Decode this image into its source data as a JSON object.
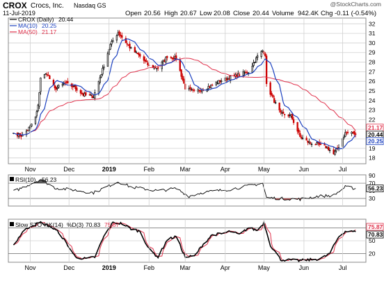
{
  "header": {
    "symbol": "CROX",
    "company": "Crocs, Inc.",
    "exchange": "Nasdaq GS",
    "date": "11-Jul-2019",
    "open_label": "Open",
    "open": "20.56",
    "high_label": "High",
    "high": "20.67",
    "low_label": "Low",
    "low": "20.08",
    "close_label": "Close",
    "close": "20.44",
    "volume_label": "Volume",
    "volume": "942.4K",
    "chg_label": "Chg",
    "chg": "-0.11 (-0.54%)",
    "watermark": "@StockCharts.com"
  },
  "colors": {
    "up": "#cc0000",
    "down": "#000000",
    "ma10": "#1a3fbf",
    "ma50": "#e0304a",
    "grid": "#d0d0d0",
    "k": "#000000",
    "d": "#e0304a",
    "rsi": "#000000"
  },
  "chart_data": [
    {
      "type": "candlestick",
      "title": "CROX (Daily) 20.44",
      "legend": [
        {
          "name": "CROX (Daily)",
          "value": "20.44"
        },
        {
          "name": "MA(10)",
          "value": "20.25"
        },
        {
          "name": "MA(50)",
          "value": "21.17"
        }
      ],
      "y_ticks": [
        18,
        19,
        20,
        21,
        22,
        23,
        24,
        25,
        26,
        27,
        28,
        29,
        30,
        31,
        32
      ],
      "ylim": [
        17.4,
        32.6
      ],
      "x_tick_labels": [
        "Nov",
        "Dec",
        "2019",
        "Feb",
        "Mar",
        "Apr",
        "May",
        "Jun",
        "Jul"
      ],
      "price_tags": {
        "ma50": "21.17",
        "ma10": "20.25",
        "close": "20.44"
      },
      "anchors": [
        [
          "2018-10-19",
          20.6
        ],
        [
          "2018-10-26",
          20.3
        ],
        [
          "2018-11-01",
          21.3
        ],
        [
          "2018-11-05",
          22.2
        ],
        [
          "2018-11-07",
          23.4
        ],
        [
          "2018-11-09",
          26.4
        ],
        [
          "2018-11-14",
          26.8
        ],
        [
          "2018-11-20",
          25.2
        ],
        [
          "2018-11-28",
          25.8
        ],
        [
          "2018-12-05",
          25.4
        ],
        [
          "2018-12-12",
          24.6
        ],
        [
          "2018-12-20",
          24.4
        ],
        [
          "2018-12-26",
          26.8
        ],
        [
          "2019-01-02",
          29.8
        ],
        [
          "2019-01-08",
          31.1
        ],
        [
          "2019-01-11",
          30.6
        ],
        [
          "2019-01-18",
          29.4
        ],
        [
          "2019-01-25",
          28.6
        ],
        [
          "2019-02-01",
          27.6
        ],
        [
          "2019-02-08",
          27.4
        ],
        [
          "2019-02-15",
          28.6
        ],
        [
          "2019-02-22",
          28.4
        ],
        [
          "2019-03-01",
          25.3
        ],
        [
          "2019-03-08",
          24.9
        ],
        [
          "2019-03-15",
          25.2
        ],
        [
          "2019-03-22",
          25.6
        ],
        [
          "2019-03-29",
          26.1
        ],
        [
          "2019-04-05",
          26.4
        ],
        [
          "2019-04-12",
          26.7
        ],
        [
          "2019-04-19",
          27.0
        ],
        [
          "2019-04-26",
          28.6
        ],
        [
          "2019-04-30",
          29.2
        ],
        [
          "2019-05-02",
          28.8
        ],
        [
          "2019-05-03",
          25.6
        ],
        [
          "2019-05-08",
          24.2
        ],
        [
          "2019-05-14",
          22.6
        ],
        [
          "2019-05-22",
          22.4
        ],
        [
          "2019-05-29",
          20.2
        ],
        [
          "2019-06-05",
          19.6
        ],
        [
          "2019-06-12",
          19.4
        ],
        [
          "2019-06-19",
          19.1
        ],
        [
          "2019-06-24",
          18.4
        ],
        [
          "2019-06-28",
          19.2
        ],
        [
          "2019-07-03",
          20.6
        ],
        [
          "2019-07-08",
          20.7
        ],
        [
          "2019-07-11",
          20.44
        ]
      ]
    },
    {
      "type": "line",
      "title": "RSI(10) 56.23",
      "name": "RSI(10)",
      "value": "56.23",
      "y_ticks": [
        30,
        50,
        70,
        90
      ],
      "ylim": [
        10,
        92
      ],
      "ref_lines": [
        30,
        70
      ],
      "last_tag": "56.23",
      "anchors": [
        [
          "2018-10-19",
          48
        ],
        [
          "2018-11-09",
          80
        ],
        [
          "2018-11-20",
          58
        ],
        [
          "2018-12-05",
          52
        ],
        [
          "2018-12-20",
          45
        ],
        [
          "2019-01-08",
          74
        ],
        [
          "2019-01-18",
          60
        ],
        [
          "2019-02-08",
          50
        ],
        [
          "2019-02-22",
          56
        ],
        [
          "2019-03-04",
          36
        ],
        [
          "2019-03-15",
          46
        ],
        [
          "2019-04-05",
          54
        ],
        [
          "2019-04-30",
          70
        ],
        [
          "2019-05-03",
          32
        ],
        [
          "2019-05-14",
          30
        ],
        [
          "2019-05-29",
          28
        ],
        [
          "2019-06-12",
          36
        ],
        [
          "2019-06-24",
          38
        ],
        [
          "2019-07-03",
          60
        ],
        [
          "2019-07-11",
          56.23
        ]
      ]
    },
    {
      "type": "line",
      "title": "Slow STO %K(14) %D(3) 70.83, 75.87",
      "k_label": "Slow STO %K(14)",
      "d_label": "%D(3)",
      "k_value": "70.83",
      "d_value": "75.87",
      "y_ticks": [
        20,
        50,
        80
      ],
      "ylim": [
        0,
        100
      ],
      "ref_lines": [
        20,
        80
      ],
      "tags": {
        "k": "70.83",
        "d": "75.87"
      },
      "anchors": [
        [
          "2018-10-19",
          40
        ],
        [
          "2018-10-26",
          70
        ],
        [
          "2018-11-01",
          84
        ],
        [
          "2018-11-09",
          92
        ],
        [
          "2018-11-16",
          84
        ],
        [
          "2018-11-23",
          70
        ],
        [
          "2018-11-30",
          40
        ],
        [
          "2018-12-06",
          12
        ],
        [
          "2018-12-14",
          8
        ],
        [
          "2018-12-21",
          12
        ],
        [
          "2018-12-28",
          60
        ],
        [
          "2019-01-04",
          92
        ],
        [
          "2019-01-11",
          90
        ],
        [
          "2019-01-18",
          78
        ],
        [
          "2019-01-25",
          72
        ],
        [
          "2019-02-01",
          30
        ],
        [
          "2019-02-08",
          12
        ],
        [
          "2019-02-15",
          52
        ],
        [
          "2019-02-22",
          60
        ],
        [
          "2019-03-01",
          12
        ],
        [
          "2019-03-08",
          14
        ],
        [
          "2019-03-15",
          42
        ],
        [
          "2019-03-22",
          64
        ],
        [
          "2019-03-29",
          66
        ],
        [
          "2019-04-05",
          72
        ],
        [
          "2019-04-12",
          64
        ],
        [
          "2019-04-19",
          80
        ],
        [
          "2019-04-26",
          74
        ],
        [
          "2019-05-01",
          92
        ],
        [
          "2019-05-06",
          40
        ],
        [
          "2019-05-14",
          6
        ],
        [
          "2019-05-28",
          4
        ],
        [
          "2019-06-07",
          6
        ],
        [
          "2019-06-14",
          8
        ],
        [
          "2019-06-21",
          20
        ],
        [
          "2019-06-28",
          60
        ],
        [
          "2019-07-03",
          72
        ],
        [
          "2019-07-11",
          70.83
        ]
      ]
    }
  ]
}
